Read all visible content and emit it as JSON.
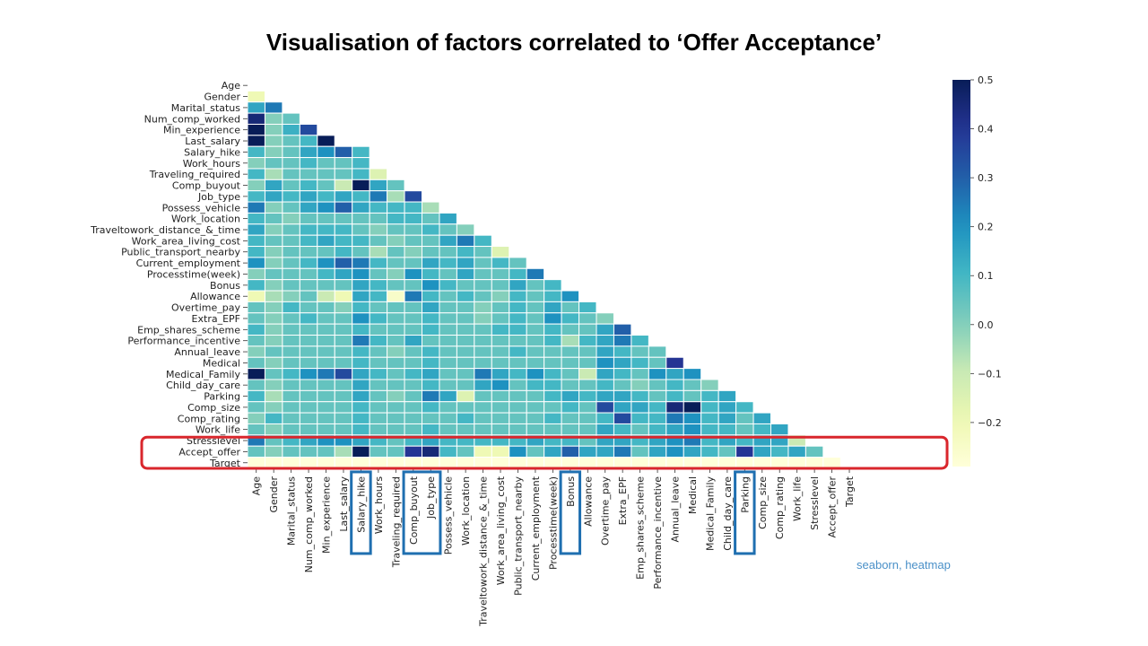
{
  "slide": {
    "title": "Visualisation of factors correlated to ‘Offer Acceptance’",
    "note": "seaborn, heatmap",
    "note_color": "#4a90c8",
    "highlight_row_color": "#d9262c",
    "highlight_col_color": "#1f6fb0",
    "highlighted_row": "Accept_offer",
    "highlighted_columns": [
      "Salary_hike",
      "Comp_buyout",
      "Job_type",
      "Bonus",
      "Parking"
    ]
  },
  "chart_data": {
    "type": "heatmap",
    "mask": "upper-triangle",
    "colormap": "YlGnBu",
    "cell_border": "white",
    "labels": [
      "Age",
      "Gender",
      "Marital_status",
      "Num_comp_worked",
      "Min_experience",
      "Last_salary",
      "Salary_hike",
      "Work_hours",
      "Traveling_required",
      "Comp_buyout",
      "Job_type",
      "Possess_vehicle",
      "Work_location",
      "Traveltowork_distance_&_time",
      "Work_area_living_cost",
      "Public_transport_nearby",
      "Current_employment",
      "Processtime(week)",
      "Bonus",
      "Allowance",
      "Overtime_pay",
      "Extra_EPF",
      "Emp_shares_scheme",
      "Performance_incentive",
      "Annual_leave",
      "Medical",
      "Medical_Family",
      "Child_day_care",
      "Parking",
      "Comp_size",
      "Comp_rating",
      "Work_life",
      "Stresslevel",
      "Accept_offer",
      "Target"
    ],
    "row_labels_display": [
      "Age",
      "Gender",
      "Marital_status",
      "Num_comp_worked",
      "Min_experience",
      "Last_salary",
      "Salary_hike",
      "Work_hours",
      "Traveling_required",
      "Comp_buyout",
      "Job_type",
      "Possess_vehicle",
      "Work_location",
      "Traveltowork_distance_&_time",
      "Work_area_living_cost",
      "Public_transport_nearby",
      "Current_employment",
      "Processtime(week)",
      "Bonus",
      "Allowance",
      "Overtime_pay",
      "Extra_EPF",
      "Emp_shares_scheme",
      "Performance_incentive",
      "Annual_leave",
      "Medical",
      "Medical_Family",
      "Child_day_care",
      "Parking",
      "Comp_size",
      "Comp_rating",
      "Work_life",
      "Stresslevel",
      "Accept_offer",
      "Target"
    ],
    "colorbar": {
      "vmin": -0.29,
      "vmax": 0.5,
      "ticks": [
        0.5,
        0.4,
        0.3,
        0.2,
        0.1,
        0.0,
        -0.1,
        -0.2
      ],
      "tick_labels": [
        "0.5",
        "0.4",
        "0.3",
        "0.2",
        "0.1",
        "0.0",
        "−0.1",
        "−0.2"
      ]
    },
    "values": [
      [],
      [
        -0.2
      ],
      [
        0.15,
        0.25
      ],
      [
        0.45,
        0.0,
        0.05
      ],
      [
        0.5,
        0.0,
        0.12,
        0.35
      ],
      [
        0.5,
        0.0,
        0.05,
        0.1,
        0.5
      ],
      [
        0.1,
        0.0,
        0.05,
        0.15,
        0.2,
        0.3,
        0.1
      ],
      [
        0.0,
        0.05,
        0.05,
        0.1,
        0.05,
        0.05,
        0.1
      ],
      [
        0.1,
        -0.05,
        0.05,
        0.05,
        0.05,
        0.05,
        0.1,
        -0.15
      ],
      [
        0.0,
        0.15,
        0.05,
        0.1,
        0.05,
        -0.1,
        0.5,
        0.15,
        0.05
      ],
      [
        0.1,
        0.15,
        0.1,
        0.15,
        0.1,
        0.15,
        0.1,
        0.25,
        -0.05,
        0.35
      ],
      [
        0.25,
        0.0,
        0.05,
        0.15,
        0.2,
        0.3,
        0.15,
        0.1,
        0.1,
        0.1,
        -0.05
      ],
      [
        0.1,
        0.05,
        0.0,
        0.05,
        0.05,
        0.05,
        0.05,
        0.05,
        0.1,
        0.1,
        0.05,
        0.15
      ],
      [
        0.15,
        0.0,
        0.05,
        0.1,
        0.1,
        0.1,
        0.05,
        0.0,
        0.05,
        0.05,
        0.1,
        0.05,
        0.0
      ],
      [
        0.1,
        0.05,
        0.05,
        0.1,
        0.15,
        0.1,
        0.1,
        0.05,
        0.0,
        0.05,
        0.05,
        0.15,
        0.25,
        0.1
      ],
      [
        0.1,
        0.0,
        0.05,
        0.05,
        0.05,
        0.1,
        0.05,
        -0.05,
        0.05,
        0.0,
        0.05,
        0.05,
        0.1,
        0.05,
        -0.15
      ],
      [
        0.2,
        0.0,
        0.05,
        0.1,
        0.2,
        0.3,
        0.25,
        0.1,
        0.05,
        0.05,
        0.15,
        0.1,
        0.15,
        0.05,
        0.1,
        0.05
      ],
      [
        0.0,
        0.05,
        0.05,
        0.05,
        0.1,
        0.15,
        0.2,
        0.05,
        0.0,
        0.2,
        0.1,
        0.05,
        0.15,
        0.05,
        0.05,
        0.1,
        0.25
      ],
      [
        0.1,
        0.0,
        0.05,
        0.05,
        0.05,
        0.05,
        0.15,
        0.1,
        0.05,
        0.05,
        0.2,
        0.1,
        0.05,
        0.05,
        0.05,
        0.15,
        0.05,
        0.1
      ],
      [
        -0.2,
        -0.05,
        0.0,
        0.05,
        -0.1,
        -0.2,
        0.15,
        0.1,
        -0.25,
        0.25,
        0.1,
        0.05,
        0.1,
        0.05,
        0.0,
        0.1,
        0.05,
        0.1,
        0.2
      ],
      [
        0.05,
        0.0,
        0.1,
        0.05,
        0.05,
        0.0,
        0.1,
        0.05,
        0.05,
        0.05,
        0.15,
        0.05,
        0.05,
        0.0,
        0.05,
        0.1,
        0.05,
        0.15,
        0.05,
        0.1
      ],
      [
        0.05,
        0.0,
        0.05,
        0.1,
        0.05,
        0.05,
        0.2,
        0.1,
        0.05,
        0.05,
        0.1,
        0.05,
        0.05,
        0.0,
        0.05,
        0.1,
        0.05,
        0.2,
        0.1,
        0.05,
        0.0
      ],
      [
        0.1,
        0.0,
        0.05,
        0.05,
        0.05,
        0.05,
        0.1,
        0.05,
        0.05,
        0.05,
        0.1,
        0.05,
        0.05,
        0.05,
        0.1,
        0.1,
        0.05,
        0.1,
        0.05,
        0.05,
        0.15,
        0.3
      ],
      [
        0.05,
        0.0,
        0.05,
        0.05,
        0.05,
        0.05,
        0.25,
        0.1,
        0.05,
        0.15,
        0.05,
        0.05,
        0.05,
        0.05,
        0.05,
        0.05,
        0.05,
        0.1,
        -0.05,
        0.1,
        0.15,
        0.25,
        0.1
      ],
      [
        0.0,
        0.05,
        0.05,
        0.05,
        0.05,
        0.05,
        0.1,
        0.05,
        0.0,
        0.05,
        0.1,
        0.05,
        0.05,
        0.05,
        0.05,
        0.1,
        0.05,
        0.05,
        0.05,
        0.05,
        0.15,
        0.1,
        0.05,
        0.05
      ],
      [
        0.05,
        0.0,
        0.05,
        0.05,
        0.05,
        0.05,
        0.1,
        0.05,
        0.05,
        0.05,
        0.1,
        0.05,
        0.05,
        0.05,
        0.05,
        0.05,
        0.05,
        0.05,
        0.05,
        0.05,
        0.2,
        0.15,
        0.1,
        0.05,
        0.4
      ],
      [
        0.5,
        0.05,
        0.1,
        0.2,
        0.25,
        0.35,
        0.15,
        0.1,
        0.05,
        0.1,
        0.15,
        0.05,
        0.05,
        0.25,
        0.15,
        0.1,
        0.2,
        0.1,
        0.05,
        -0.1,
        0.15,
        0.1,
        0.05,
        0.2,
        0.15,
        0.2
      ],
      [
        0.05,
        0.0,
        0.05,
        0.05,
        0.05,
        0.05,
        0.15,
        0.05,
        0.05,
        0.05,
        0.1,
        0.05,
        0.05,
        0.15,
        0.2,
        0.05,
        0.1,
        0.1,
        0.05,
        0.05,
        0.1,
        0.05,
        0.0,
        0.05,
        0.1,
        0.05,
        0.0
      ],
      [
        0.1,
        -0.05,
        0.05,
        0.05,
        0.05,
        0.05,
        0.15,
        0.05,
        0.0,
        0.05,
        0.25,
        0.15,
        -0.15,
        0.05,
        0.05,
        0.05,
        0.05,
        0.1,
        0.15,
        0.1,
        0.15,
        0.15,
        0.1,
        0.05,
        0.1,
        0.05,
        0.1,
        0.15
      ],
      [
        0.05,
        0.0,
        0.05,
        0.05,
        0.05,
        0.05,
        0.1,
        0.05,
        0.05,
        0.05,
        0.1,
        0.05,
        0.05,
        0.05,
        0.05,
        0.05,
        0.05,
        0.05,
        0.1,
        0.05,
        0.35,
        0.15,
        0.15,
        0.1,
        0.45,
        0.5,
        0.1,
        0.15,
        0.1
      ],
      [
        0.0,
        0.1,
        0.05,
        0.05,
        0.05,
        0.05,
        0.1,
        0.05,
        0.05,
        0.05,
        0.05,
        0.05,
        0.1,
        0.05,
        0.05,
        0.05,
        0.05,
        0.1,
        0.05,
        0.05,
        0.1,
        0.35,
        0.1,
        0.1,
        0.25,
        0.2,
        0.1,
        0.15,
        0.05,
        0.15
      ],
      [
        0.05,
        0.0,
        0.05,
        0.05,
        0.05,
        0.05,
        0.1,
        0.05,
        0.05,
        0.05,
        0.1,
        0.05,
        0.05,
        0.05,
        0.05,
        0.05,
        0.05,
        0.05,
        0.05,
        0.05,
        0.15,
        0.1,
        0.05,
        0.1,
        0.15,
        0.2,
        0.1,
        0.1,
        0.05,
        0.1,
        0.15
      ],
      [
        0.25,
        0.05,
        0.1,
        0.15,
        0.2,
        0.2,
        0.15,
        0.1,
        0.05,
        0.1,
        0.15,
        0.1,
        0.1,
        0.1,
        0.1,
        0.1,
        0.15,
        0.1,
        0.1,
        0.05,
        0.15,
        0.15,
        0.1,
        0.15,
        0.2,
        0.25,
        0.1,
        0.15,
        0.1,
        0.15,
        0.15,
        -0.1
      ],
      [
        0.05,
        0.0,
        0.05,
        0.05,
        0.05,
        -0.05,
        0.5,
        0.05,
        0.05,
        0.4,
        0.45,
        0.1,
        0.05,
        -0.2,
        -0.2,
        0.2,
        0.05,
        0.15,
        0.3,
        0.15,
        0.15,
        0.25,
        0.05,
        0.15,
        0.2,
        0.15,
        0.1,
        0.05,
        0.4,
        0.15,
        0.1,
        0.15,
        0.05
      ],
      [
        -0.3,
        -0.3,
        -0.3,
        -0.3,
        -0.3,
        -0.3,
        -0.3,
        -0.3,
        -0.3,
        -0.3,
        -0.3,
        -0.3,
        -0.3,
        -0.3,
        -0.3,
        -0.3,
        -0.3,
        -0.3,
        -0.3,
        -0.3,
        -0.3,
        -0.3,
        -0.3,
        -0.3,
        -0.3,
        -0.3,
        -0.3,
        -0.3,
        -0.3,
        -0.3,
        -0.3,
        -0.3,
        -0.3,
        -0.3
      ]
    ]
  }
}
